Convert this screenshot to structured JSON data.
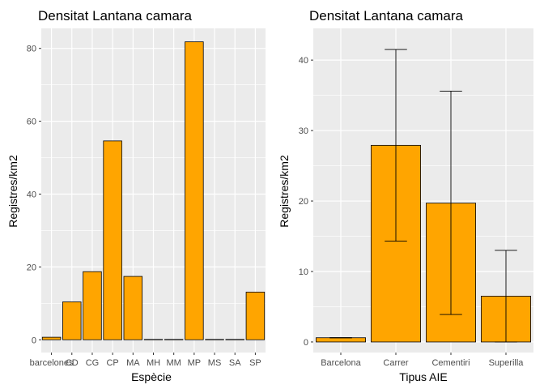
{
  "chart_data": [
    {
      "type": "bar",
      "title": "Densitat Lantana camara",
      "xlabel": "Espècie",
      "ylabel": "Registres/km2",
      "categories": [
        "barcelones",
        "CD",
        "CG",
        "CP",
        "MA",
        "MH",
        "MM",
        "MP",
        "MS",
        "SA",
        "SP"
      ],
      "values": [
        0.7,
        10.4,
        18.7,
        54.6,
        17.4,
        0.1,
        0.1,
        81.8,
        0.1,
        0.1,
        13.1
      ],
      "ylim": [
        -3.5,
        85.5
      ],
      "yticks": [
        0,
        20,
        40,
        60,
        80
      ],
      "bar_color": "#FFA500",
      "panel_background": "#EBEBEB",
      "grid": true,
      "legend": "none"
    },
    {
      "type": "bar",
      "title": "Densitat Lantana camara",
      "xlabel": "Tipus AIE",
      "ylabel": "Registres/km2",
      "categories": [
        "Barcelona",
        "Carrer",
        "Cementiri",
        "Superilla"
      ],
      "values": [
        0.6,
        27.9,
        19.7,
        6.5
      ],
      "error_low": [
        0.6,
        14.3,
        3.9,
        0.0
      ],
      "error_high": [
        0.6,
        41.5,
        35.6,
        13.0
      ],
      "ylim": [
        -1.5,
        44.5
      ],
      "yticks": [
        0,
        10,
        20,
        30,
        40
      ],
      "bar_color": "#FFA500",
      "panel_background": "#EBEBEB",
      "grid": true,
      "legend": "none"
    }
  ]
}
